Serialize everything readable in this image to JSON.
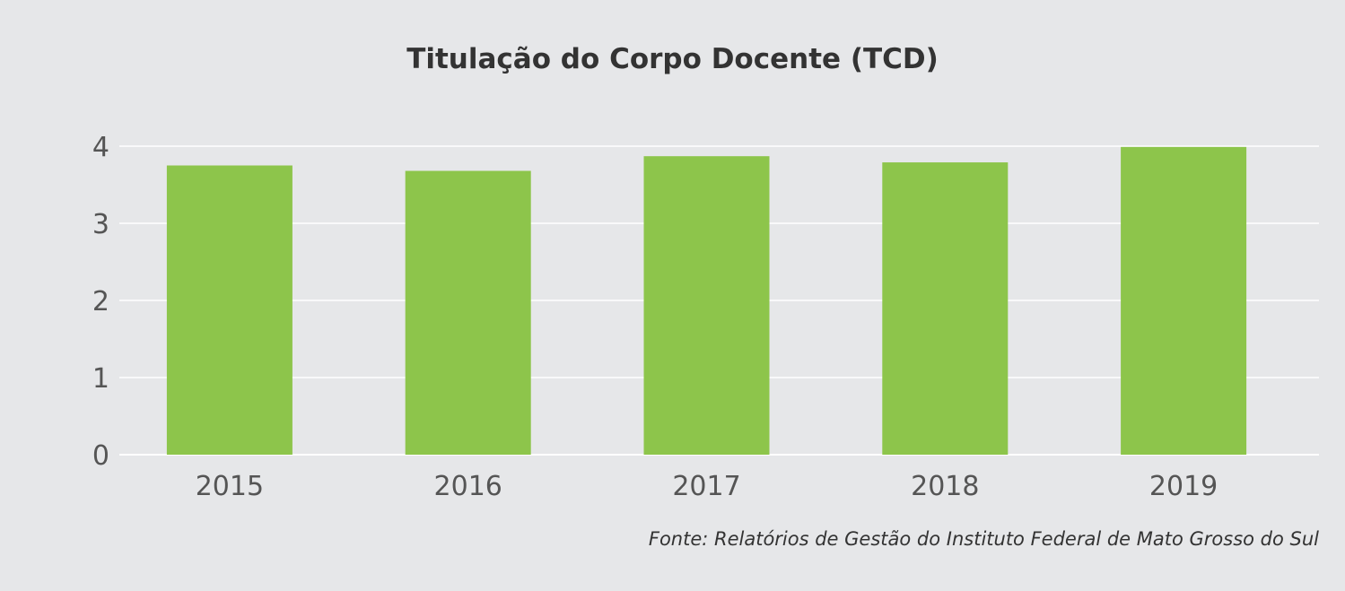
{
  "chart_data": {
    "type": "bar",
    "title": "Titulação do Corpo Docente (TCD)",
    "xlabel": "",
    "ylabel": "",
    "categories": [
      "2015",
      "2016",
      "2017",
      "2018",
      "2019"
    ],
    "values": [
      3.75,
      3.68,
      3.87,
      3.79,
      3.99
    ],
    "ylim": [
      0,
      4
    ],
    "yticks": [
      "0",
      "1",
      "2",
      "3",
      "4"
    ],
    "grid": true,
    "legend": "none",
    "bar_color": "#8dc54b",
    "gridline_color": "#ffffff",
    "source": "Fonte: Relatórios de Gestão do Instituto Federal de Mato Grosso do Sul"
  }
}
